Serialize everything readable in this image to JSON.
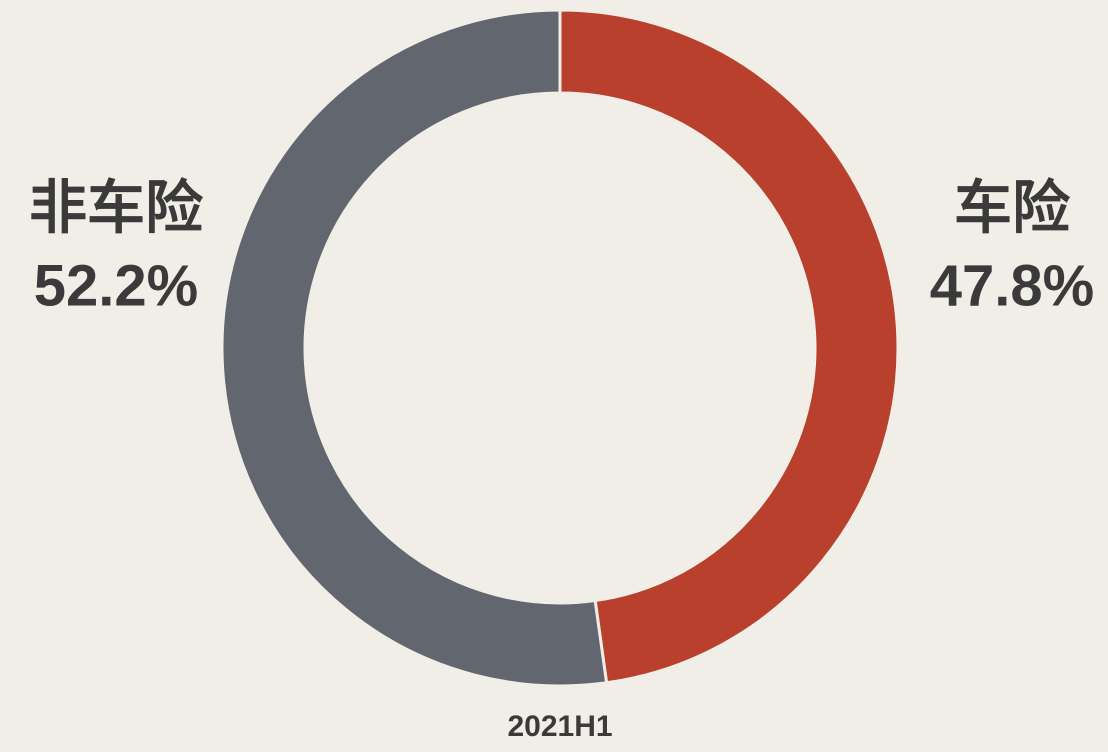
{
  "chart_data": {
    "type": "pie",
    "donut": true,
    "title": "2021H1",
    "categories": [
      "车险",
      "非车险"
    ],
    "values": [
      47.8,
      52.2
    ],
    "value_labels": [
      "47.8%",
      "52.2%"
    ],
    "colors": [
      "#b8402c",
      "#62666e"
    ]
  }
}
